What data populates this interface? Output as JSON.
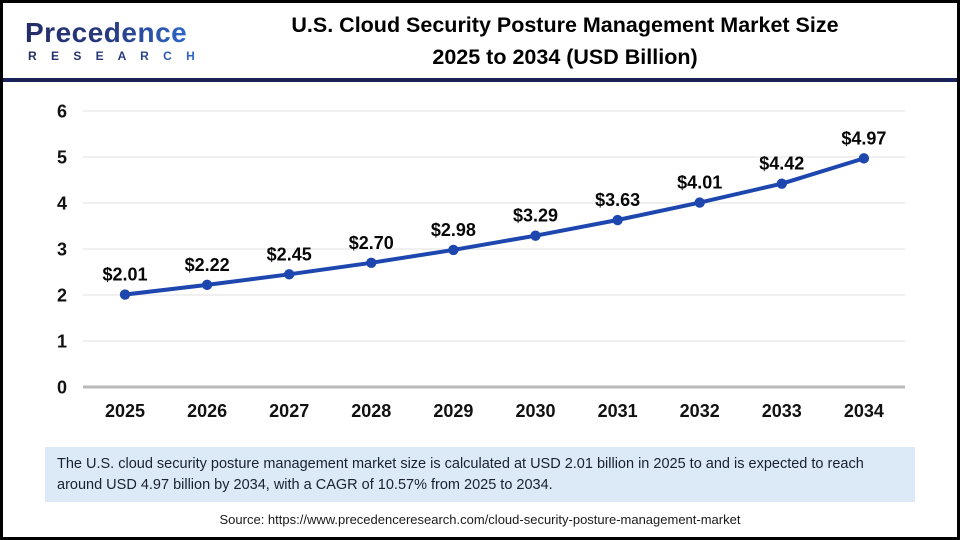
{
  "page": {
    "logo": {
      "brand": "Precedence",
      "sub": "R E S E A R C H"
    },
    "title_line1": "U.S. Cloud Security Posture Management Market Size",
    "title_line2": "2025 to 2034 (USD Billion)",
    "note": "The U.S. cloud security posture management market size is calculated at USD 2.01 billion in 2025 to and is expected to reach around USD 4.97 billion by 2034, with a CAGR of 10.57% from 2025 to 2034.",
    "source": "Source: https://www.precedenceresearch.com/cloud-security-posture-management-market"
  },
  "colors": {
    "line": "#1d47ae",
    "gridline": "#ececec",
    "axis_line": "#b9b9b9",
    "divider": "#1a2157",
    "note_background": "#dce9f7",
    "logo_navy": "#232e68",
    "logo_blue": "#2f6fd6"
  },
  "chart_data": {
    "type": "line",
    "title": "U.S. Cloud Security Posture Management Market Size 2025 to 2034 (USD Billion)",
    "categories": [
      "2025",
      "2026",
      "2027",
      "2028",
      "2029",
      "2030",
      "2031",
      "2032",
      "2033",
      "2034"
    ],
    "values": [
      2.01,
      2.22,
      2.45,
      2.7,
      2.98,
      3.29,
      3.63,
      4.01,
      4.42,
      4.97
    ],
    "labels": [
      "$2.01",
      "$2.22",
      "$2.45",
      "$2.70",
      "$2.98",
      "$3.29",
      "$3.63",
      "$4.01",
      "$4.42",
      "$4.97"
    ],
    "unit": "USD Billion",
    "xlabel": "",
    "ylabel": "",
    "yticks": [
      0,
      1,
      2,
      3,
      4,
      5,
      6
    ],
    "ylim": [
      0,
      6
    ],
    "grid": true,
    "legend": false,
    "line_color": "#1d47ae",
    "marker": "circle"
  }
}
